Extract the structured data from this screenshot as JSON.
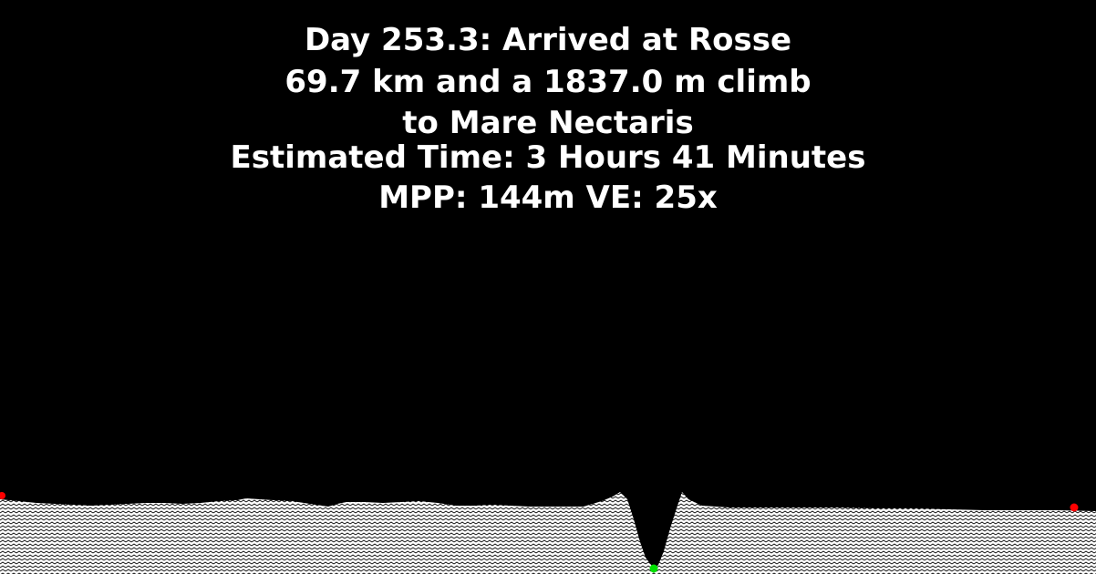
{
  "status": {
    "arrival": "Day 253.3: Arrived at Rosse",
    "leg_distance_climb": "69.7 km and a 1837.0 m climb",
    "destination": "to Mare Nectaris",
    "estimated_time": "Estimated Time: 3 Hours 41 Minutes",
    "scale": "MPP: 144m VE: 25x"
  },
  "colors": {
    "background": "#000000",
    "text": "#ffffff",
    "terrain_fill": "#ffffff",
    "terrain_hatch": "#000000",
    "endpoint_marker": "#ff0000",
    "current_position_marker": "#00e000"
  }
}
